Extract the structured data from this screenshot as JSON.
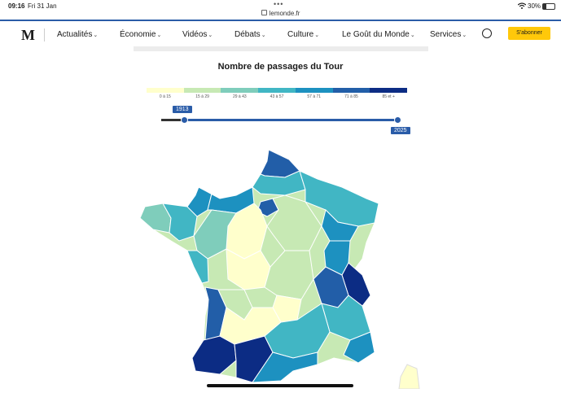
{
  "status": {
    "time": "09:16",
    "date": "Fri 31 Jan",
    "battery": "30%"
  },
  "url": "lemonde.fr",
  "nav": {
    "logo": "M",
    "items": [
      "Actualités",
      "Économie",
      "Vidéos",
      "Débats",
      "Culture",
      "Le Goût du Monde",
      "Services"
    ],
    "subscribe": "S'abonner"
  },
  "map": {
    "title": "Nombre de passages du Tour",
    "legend": [
      {
        "label": "0 à 15",
        "color": "#ffffcc"
      },
      {
        "label": "15 à 29",
        "color": "#c7e9b4"
      },
      {
        "label": "29 à 43",
        "color": "#7fcdbb"
      },
      {
        "label": "43 à 57",
        "color": "#41b6c4"
      },
      {
        "label": "57 à 71",
        "color": "#1d91c0"
      },
      {
        "label": "71 à 85",
        "color": "#225ea8"
      },
      {
        "label": "85 et +",
        "color": "#0c2c84"
      }
    ],
    "slider": {
      "start": "1913",
      "end": "2025"
    }
  }
}
